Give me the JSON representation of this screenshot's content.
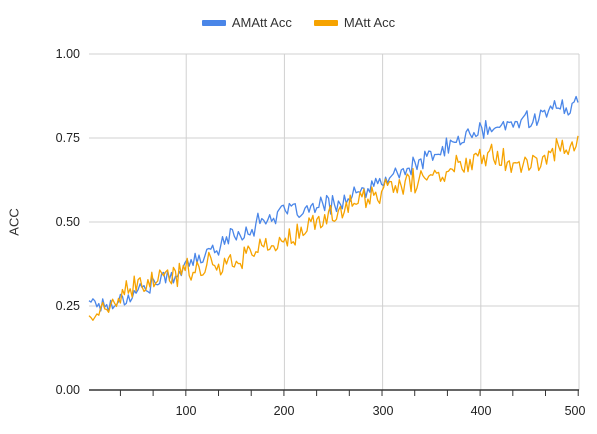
{
  "chart_data": {
    "type": "line",
    "xlabel": "",
    "ylabel": "ACC",
    "xlim": [
      1,
      500
    ],
    "ylim": [
      0,
      1
    ],
    "x_ticks": [
      "100",
      "200",
      "300",
      "400",
      "500"
    ],
    "y_ticks": [
      "0.00",
      "0.25",
      "0.50",
      "0.75",
      "1.00"
    ],
    "grid": true,
    "legend_position": "top",
    "series": [
      {
        "name": "AMAtt Acc",
        "color": "#4a86e8",
        "points": [
          [
            1,
            0.27
          ],
          [
            20,
            0.25
          ],
          [
            40,
            0.28
          ],
          [
            60,
            0.31
          ],
          [
            80,
            0.33
          ],
          [
            100,
            0.37
          ],
          [
            120,
            0.4
          ],
          [
            140,
            0.45
          ],
          [
            160,
            0.47
          ],
          [
            180,
            0.51
          ],
          [
            200,
            0.53
          ],
          [
            220,
            0.53
          ],
          [
            240,
            0.55
          ],
          [
            260,
            0.56
          ],
          [
            280,
            0.59
          ],
          [
            300,
            0.62
          ],
          [
            320,
            0.65
          ],
          [
            340,
            0.68
          ],
          [
            360,
            0.71
          ],
          [
            380,
            0.75
          ],
          [
            400,
            0.77
          ],
          [
            420,
            0.78
          ],
          [
            440,
            0.8
          ],
          [
            460,
            0.82
          ],
          [
            480,
            0.84
          ],
          [
            500,
            0.85
          ]
        ]
      },
      {
        "name": "MAtt Acc",
        "color": "#f6a300",
        "points": [
          [
            1,
            0.22
          ],
          [
            20,
            0.24
          ],
          [
            40,
            0.29
          ],
          [
            60,
            0.32
          ],
          [
            80,
            0.33
          ],
          [
            100,
            0.36
          ],
          [
            120,
            0.37
          ],
          [
            140,
            0.38
          ],
          [
            160,
            0.4
          ],
          [
            180,
            0.43
          ],
          [
            200,
            0.44
          ],
          [
            220,
            0.47
          ],
          [
            240,
            0.51
          ],
          [
            260,
            0.54
          ],
          [
            280,
            0.57
          ],
          [
            300,
            0.59
          ],
          [
            320,
            0.61
          ],
          [
            340,
            0.63
          ],
          [
            360,
            0.64
          ],
          [
            380,
            0.67
          ],
          [
            400,
            0.71
          ],
          [
            420,
            0.7
          ],
          [
            440,
            0.67
          ],
          [
            460,
            0.68
          ],
          [
            480,
            0.72
          ],
          [
            500,
            0.74
          ]
        ]
      }
    ]
  }
}
